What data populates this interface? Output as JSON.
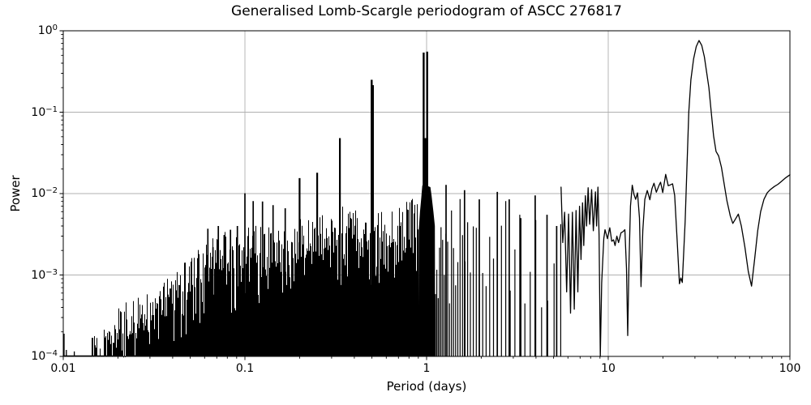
{
  "chart_data": {
    "type": "line",
    "title": "Generalised Lomb-Scargle periodogram of ASCC 276817",
    "xlabel": "Period (days)",
    "ylabel": "Power",
    "xscale": "log",
    "yscale": "log",
    "xlim": [
      0.01,
      100
    ],
    "ylim": [
      0.0001,
      1
    ],
    "grid": true,
    "grid_color": "#b0b0b0",
    "line_color": "#000000",
    "background": "#ffffff",
    "x_ticks": [
      {
        "label": "0.01",
        "value": 0.01
      },
      {
        "label": "0.1",
        "value": 0.1
      },
      {
        "label": "1",
        "value": 1
      },
      {
        "label": "10",
        "value": 10
      },
      {
        "label": "100",
        "value": 100
      }
    ],
    "y_ticks": [
      {
        "base": "10",
        "exp": "0",
        "value": 1
      },
      {
        "base": "10",
        "exp": "−1",
        "value": 0.1
      },
      {
        "base": "10",
        "exp": "−2",
        "value": 0.01
      },
      {
        "base": "10",
        "exp": "−3",
        "value": 0.001
      },
      {
        "base": "10",
        "exp": "−4",
        "value": 0.0001
      }
    ],
    "main_peaks": [
      {
        "period": 31.6,
        "power": 0.76
      },
      {
        "period": 1.0,
        "power": 0.55
      },
      {
        "period": 0.5,
        "power": 0.25
      },
      {
        "period": 0.333,
        "power": 0.048
      }
    ],
    "pre_forest_spikes": [
      [
        0.0101,
        0.00019
      ],
      [
        0.0104,
        0.00012
      ],
      [
        0.0115,
        0.000115
      ]
    ],
    "pre_forest_clusters": [
      {
        "p0": 0.0143,
        "p1": 0.0159,
        "base": 0.000115,
        "spread": 0.22
      },
      {
        "p0": 0.0167,
        "p1": 0.0185,
        "base": 0.00013,
        "spread": 0.22
      }
    ],
    "forest_fill": [
      [
        0.0187,
        0.00014
      ],
      [
        0.025,
        0.00018
      ],
      [
        0.04,
        0.00026
      ],
      [
        0.06,
        0.0004
      ],
      [
        0.08,
        0.00052
      ],
      [
        0.12,
        0.0008
      ],
      [
        0.2,
        0.001
      ],
      [
        0.3,
        0.0012
      ],
      [
        0.5,
        0.0013
      ],
      [
        0.7,
        0.0015
      ],
      [
        0.9,
        0.0015
      ]
    ],
    "forest_envelope": [
      [
        0.0187,
        0.00028
      ],
      [
        0.022,
        0.00034
      ],
      [
        0.026,
        0.00042
      ],
      [
        0.03,
        0.00052
      ],
      [
        0.035,
        0.00068
      ],
      [
        0.04,
        0.00085
      ],
      [
        0.05,
        0.00125
      ],
      [
        0.06,
        0.0019
      ],
      [
        0.07,
        0.0023
      ],
      [
        0.08,
        0.0026
      ],
      [
        0.1,
        0.003
      ],
      [
        0.13,
        0.003
      ],
      [
        0.16,
        0.0032
      ],
      [
        0.2,
        0.0036
      ],
      [
        0.25,
        0.0039
      ],
      [
        0.3,
        0.0042
      ],
      [
        0.32,
        0.0055
      ],
      [
        0.345,
        0.0055
      ],
      [
        0.4,
        0.0046
      ],
      [
        0.47,
        0.005
      ],
      [
        0.5,
        0.0068
      ],
      [
        0.53,
        0.005
      ],
      [
        0.6,
        0.005
      ],
      [
        0.7,
        0.0055
      ],
      [
        0.8,
        0.006
      ],
      [
        0.9,
        0.007
      ],
      [
        1.1,
        0.006
      ],
      [
        1.3,
        0.0062
      ],
      [
        1.6,
        0.0075
      ],
      [
        2.0,
        0.0062
      ],
      [
        2.5,
        0.0075
      ],
      [
        3.0,
        0.0058
      ],
      [
        3.5,
        0.0052
      ],
      [
        4.0,
        0.0065
      ],
      [
        4.5,
        0.0048
      ],
      [
        5.0,
        0.0042
      ],
      [
        5.5,
        0.008
      ]
    ],
    "alias_spikes": [
      [
        0.0625,
        0.0037
      ],
      [
        0.0667,
        0.0022
      ],
      [
        0.0714,
        0.004
      ],
      [
        0.0769,
        0.0031
      ],
      [
        0.0833,
        0.0036
      ],
      [
        0.0909,
        0.004
      ],
      [
        0.1,
        0.0101
      ],
      [
        0.1111,
        0.0081
      ],
      [
        0.125,
        0.008
      ],
      [
        0.1429,
        0.0072
      ],
      [
        0.1667,
        0.0066
      ],
      [
        0.2,
        0.0155
      ],
      [
        0.25,
        0.018
      ],
      [
        0.3333,
        0.048
      ],
      [
        1.28,
        0.0128
      ],
      [
        1.617,
        0.011
      ],
      [
        1.95,
        0.0085
      ],
      [
        2.45,
        0.0105
      ],
      [
        2.85,
        0.0085
      ],
      [
        3.3,
        0.005
      ],
      [
        3.96,
        0.0095
      ],
      [
        4.6,
        0.0055
      ],
      [
        5.2,
        0.004
      ]
    ],
    "half_day_peaks": [
      [
        0.4985,
        0.25
      ],
      [
        0.5065,
        0.215
      ]
    ],
    "one_day_peaks": [
      [
        0.9635,
        0.54
      ],
      [
        1.007,
        0.555
      ]
    ],
    "one_day_cluster": [
      [
        0.9,
        0.0001
      ],
      [
        0.905,
        0.0035
      ],
      [
        0.92,
        0.006
      ],
      [
        0.935,
        0.009
      ],
      [
        0.947,
        0.0125
      ],
      [
        0.96,
        0.013
      ],
      [
        1.05,
        0.012
      ],
      [
        1.065,
        0.0095
      ],
      [
        1.09,
        0.006
      ],
      [
        1.11,
        0.004
      ],
      [
        1.115,
        0.0001
      ]
    ],
    "one_day_shoulder": [
      [
        0.9535,
        0.0001
      ],
      [
        0.9535,
        0.048
      ],
      [
        1.021,
        0.048
      ],
      [
        1.021,
        0.0001
      ]
    ],
    "smooth_curve": [
      [
        5.5,
        0.012
      ],
      [
        5.62,
        0.0025
      ],
      [
        5.75,
        0.0059
      ],
      [
        5.9,
        0.00062
      ],
      [
        6.05,
        0.0056
      ],
      [
        6.2,
        0.00034
      ],
      [
        6.35,
        0.0059
      ],
      [
        6.5,
        0.00038
      ],
      [
        6.65,
        0.0062
      ],
      [
        6.8,
        0.00062
      ],
      [
        6.95,
        0.007
      ],
      [
        7.08,
        0.00155
      ],
      [
        7.22,
        0.0077
      ],
      [
        7.33,
        0.0023
      ],
      [
        7.48,
        0.0094
      ],
      [
        7.6,
        0.004
      ],
      [
        7.75,
        0.0118
      ],
      [
        7.9,
        0.0042
      ],
      [
        8.1,
        0.0112
      ],
      [
        8.28,
        0.0035
      ],
      [
        8.5,
        0.0105
      ],
      [
        8.62,
        0.004
      ],
      [
        8.78,
        0.012
      ],
      [
        8.9,
        0.003
      ],
      [
        9.04,
        0.0001
      ],
      [
        9.2,
        0.0008
      ],
      [
        9.45,
        0.0028
      ],
      [
        9.6,
        0.0036
      ],
      [
        9.9,
        0.0028
      ],
      [
        10.2,
        0.0038
      ],
      [
        10.45,
        0.0026
      ],
      [
        10.7,
        0.0027
      ],
      [
        10.9,
        0.0023
      ],
      [
        11.15,
        0.003
      ],
      [
        11.4,
        0.0025
      ],
      [
        11.75,
        0.0033
      ],
      [
        12.05,
        0.0034
      ],
      [
        12.35,
        0.0036
      ],
      [
        12.6,
        0.0012
      ],
      [
        12.8,
        0.00018
      ],
      [
        13.0,
        0.0013
      ],
      [
        13.25,
        0.007
      ],
      [
        13.55,
        0.0127
      ],
      [
        13.85,
        0.0098
      ],
      [
        14.15,
        0.0085
      ],
      [
        14.5,
        0.0102
      ],
      [
        14.85,
        0.005
      ],
      [
        15.15,
        0.00072
      ],
      [
        15.5,
        0.0035
      ],
      [
        15.9,
        0.0085
      ],
      [
        16.4,
        0.0109
      ],
      [
        16.95,
        0.0084
      ],
      [
        17.4,
        0.0115
      ],
      [
        17.85,
        0.0134
      ],
      [
        18.4,
        0.0104
      ],
      [
        19.0,
        0.0125
      ],
      [
        19.4,
        0.0138
      ],
      [
        19.95,
        0.0103
      ],
      [
        20.7,
        0.0172
      ],
      [
        21.4,
        0.0125
      ],
      [
        22.0,
        0.0128
      ],
      [
        22.6,
        0.0132
      ],
      [
        23.2,
        0.0095
      ],
      [
        24.0,
        0.0024
      ],
      [
        24.65,
        0.00078
      ],
      [
        25.1,
        0.00092
      ],
      [
        25.55,
        0.00081
      ],
      [
        26.5,
        0.0045
      ],
      [
        27.2,
        0.025
      ],
      [
        27.75,
        0.1
      ],
      [
        28.5,
        0.25
      ],
      [
        29.5,
        0.45
      ],
      [
        30.5,
        0.64
      ],
      [
        31.6,
        0.76
      ],
      [
        32.7,
        0.66
      ],
      [
        33.8,
        0.48
      ],
      [
        34.8,
        0.31
      ],
      [
        35.8,
        0.2
      ],
      [
        36.9,
        0.1
      ],
      [
        38.0,
        0.051
      ],
      [
        39.2,
        0.033
      ],
      [
        40.5,
        0.029
      ],
      [
        42.0,
        0.021
      ],
      [
        43.5,
        0.013
      ],
      [
        45.0,
        0.0082
      ],
      [
        47.0,
        0.0053
      ],
      [
        48.5,
        0.0043
      ],
      [
        50.5,
        0.005
      ],
      [
        52.0,
        0.0056
      ],
      [
        54.0,
        0.004
      ],
      [
        56.5,
        0.0022
      ],
      [
        59.0,
        0.0011
      ],
      [
        61.5,
        0.00073
      ],
      [
        64.0,
        0.0016
      ],
      [
        66.5,
        0.0035
      ],
      [
        69.0,
        0.006
      ],
      [
        72.0,
        0.0085
      ],
      [
        75.0,
        0.0102
      ],
      [
        78.0,
        0.0112
      ],
      [
        82.0,
        0.0122
      ],
      [
        86.0,
        0.013
      ],
      [
        90.0,
        0.0142
      ],
      [
        95.0,
        0.0157
      ],
      [
        100.0,
        0.017
      ]
    ]
  }
}
